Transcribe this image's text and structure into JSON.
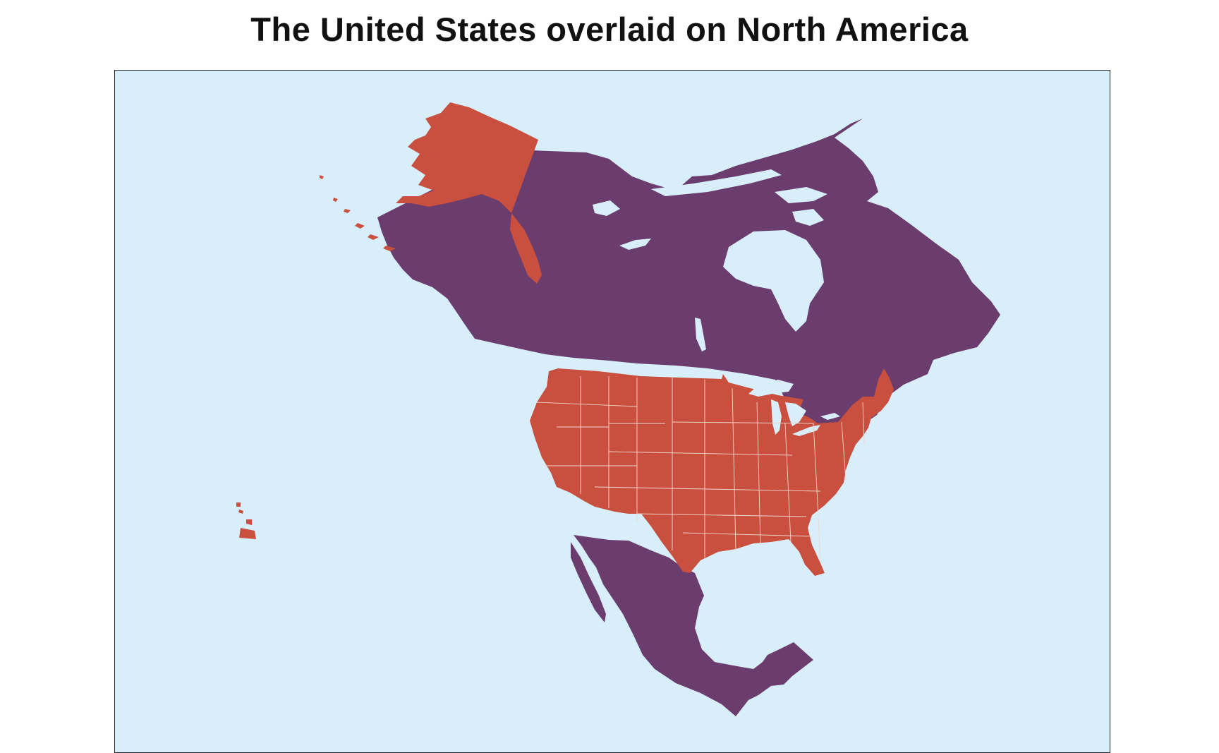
{
  "title": "The United States overlaid on North America",
  "colors": {
    "ocean": "#d8effb",
    "united_states": "#c9503e",
    "other_north_america": "#6b3c6e",
    "state_borders": "#f1d6cc",
    "frame": "#222222"
  },
  "regions": [
    {
      "name": "United States",
      "role": "highlight",
      "color": "#c9503e"
    },
    {
      "name": "Canada",
      "role": "context",
      "color": "#6b3c6e"
    },
    {
      "name": "Mexico",
      "role": "context",
      "color": "#6b3c6e"
    }
  ]
}
